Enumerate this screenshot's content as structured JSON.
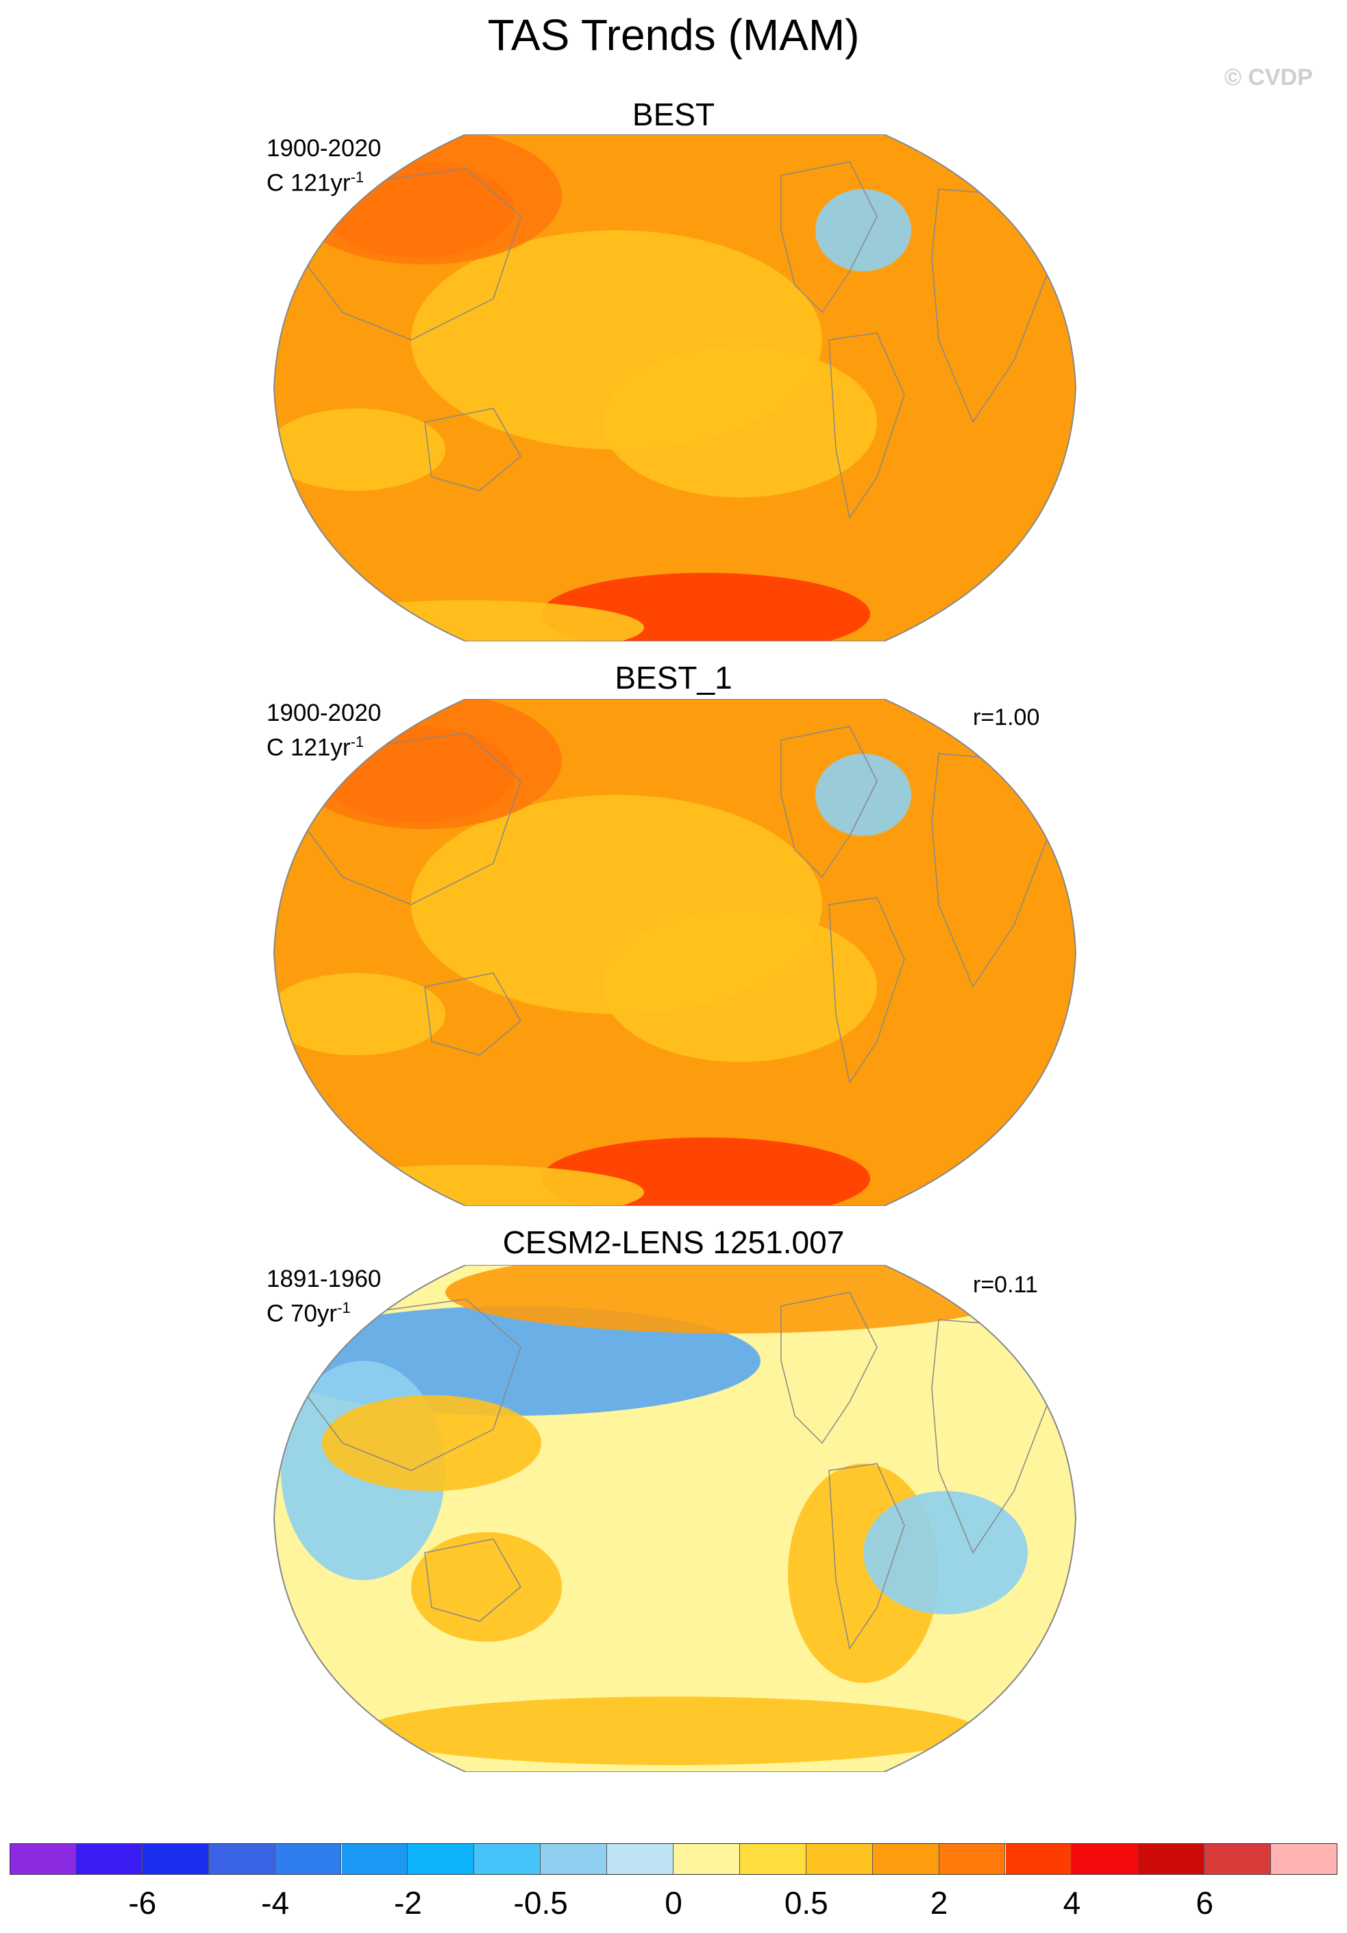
{
  "figure": {
    "title": "TAS Trends (MAM)",
    "credit": "© CVDP"
  },
  "panels": [
    {
      "title": "BEST",
      "period": "1900-2020",
      "units_prefix": "C 121yr",
      "units_exp": "-1",
      "correlation": "",
      "colors": {
        "base": "#fd9d0d",
        "warm": "#ff7a0a",
        "hot": "#ff3c00",
        "cool": "#ffc21e",
        "land_line": "#888888"
      }
    },
    {
      "title": "BEST_1",
      "period": "1900-2020",
      "units_prefix": "C 121yr",
      "units_exp": "-1",
      "correlation": "r=1.00",
      "colors": {
        "base": "#fd9d0d",
        "warm": "#ff7a0a",
        "hot": "#ff3c00",
        "cool": "#ffc21e",
        "land_line": "#888888"
      }
    },
    {
      "title": "CESM2-LENS 1251.007",
      "period": "1891-1960",
      "units_prefix": "C 70yr",
      "units_exp": "-1",
      "correlation": "r=0.11",
      "colors": {
        "base": "#fff59c",
        "warm": "#ffc21e",
        "hot": "#fd9d0d",
        "cool": "#5aa8f0",
        "land_line": "#888888"
      }
    }
  ],
  "colorbar": {
    "colors": [
      "#8a2be2",
      "#3b1cf2",
      "#1a2ef0",
      "#3a63e6",
      "#2f7ef0",
      "#1a9af5",
      "#0db3fb",
      "#46c4f9",
      "#8fd0f0",
      "#bde3f5",
      "#fff59c",
      "#ffdd3c",
      "#ffc21e",
      "#fd9d0d",
      "#ff7a0a",
      "#ff3c00",
      "#f30a0a",
      "#cf0a0a",
      "#d93a3a",
      "#ffb3b3"
    ],
    "tick_labels": [
      "-6",
      "-4",
      "-2",
      "-0.5",
      "0",
      "0.5",
      "2",
      "4",
      "6"
    ],
    "tick_after_cell": [
      1,
      3,
      5,
      7,
      9,
      11,
      13,
      15,
      17
    ]
  }
}
